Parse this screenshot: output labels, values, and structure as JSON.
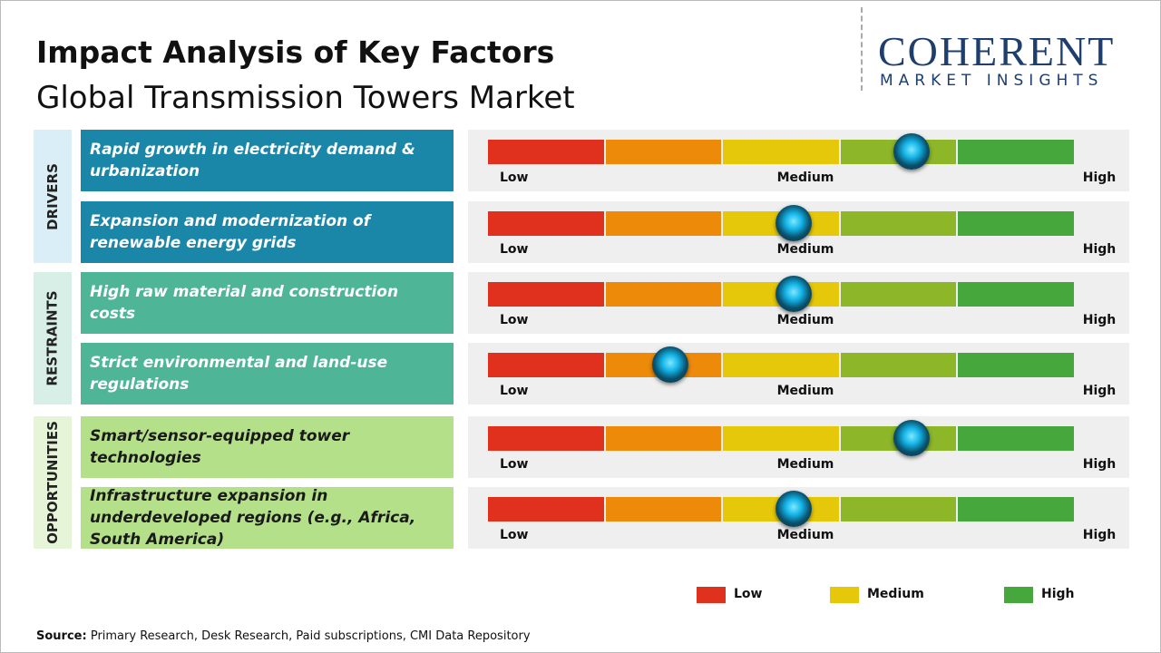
{
  "header": {
    "title": "Impact Analysis of Key Factors",
    "subtitle": "Global Transmission Towers Market"
  },
  "logo": {
    "name": "COHERENT",
    "tagline": "MARKET INSIGHTS"
  },
  "xlim": [
    0,
    100
  ],
  "scale_colors": [
    "#e0301e",
    "#ee8a0a",
    "#e6c80a",
    "#8db628",
    "#46a83c"
  ],
  "scale_labels": [
    "Low",
    "Medium",
    "High"
  ],
  "groups": [
    {
      "name": "DRIVERS",
      "color": "#1a87a8",
      "side_color": "#d9eef6",
      "text_color": "#ffffff",
      "factors": [
        {
          "label": "Rapid growth in electricity demand & urbanization",
          "impact": 72
        },
        {
          "label": "Expansion and modernization of renewable energy grids",
          "impact": 52
        }
      ]
    },
    {
      "name": "RESTRAINTS",
      "color": "#4fb597",
      "side_color": "#d8efe8",
      "text_color": "#ffffff",
      "factors": [
        {
          "label": "High raw material and construction costs",
          "impact": 52
        },
        {
          "label": "Strict environmental and land-use regulations",
          "impact": 31
        }
      ]
    },
    {
      "name": "OPPORTUNITIES",
      "color": "#b5e08a",
      "side_color": "#e6f5d8",
      "text_color": "#1a1a1a",
      "factors": [
        {
          "label": "Smart/sensor-equipped tower technologies",
          "impact": 72
        },
        {
          "label": "Infrastructure expansion in underdeveloped regions (e.g., Africa, South America)",
          "impact": 52
        }
      ]
    }
  ],
  "legend": [
    {
      "name": "Low",
      "color": "#e0301e"
    },
    {
      "name": "Medium",
      "color": "#e6c80a"
    },
    {
      "name": "High",
      "color": "#46a83c"
    }
  ],
  "source": {
    "label": "Source:",
    "text": "Primary Research, Desk Research, Paid subscriptions, CMI Data Repository"
  }
}
